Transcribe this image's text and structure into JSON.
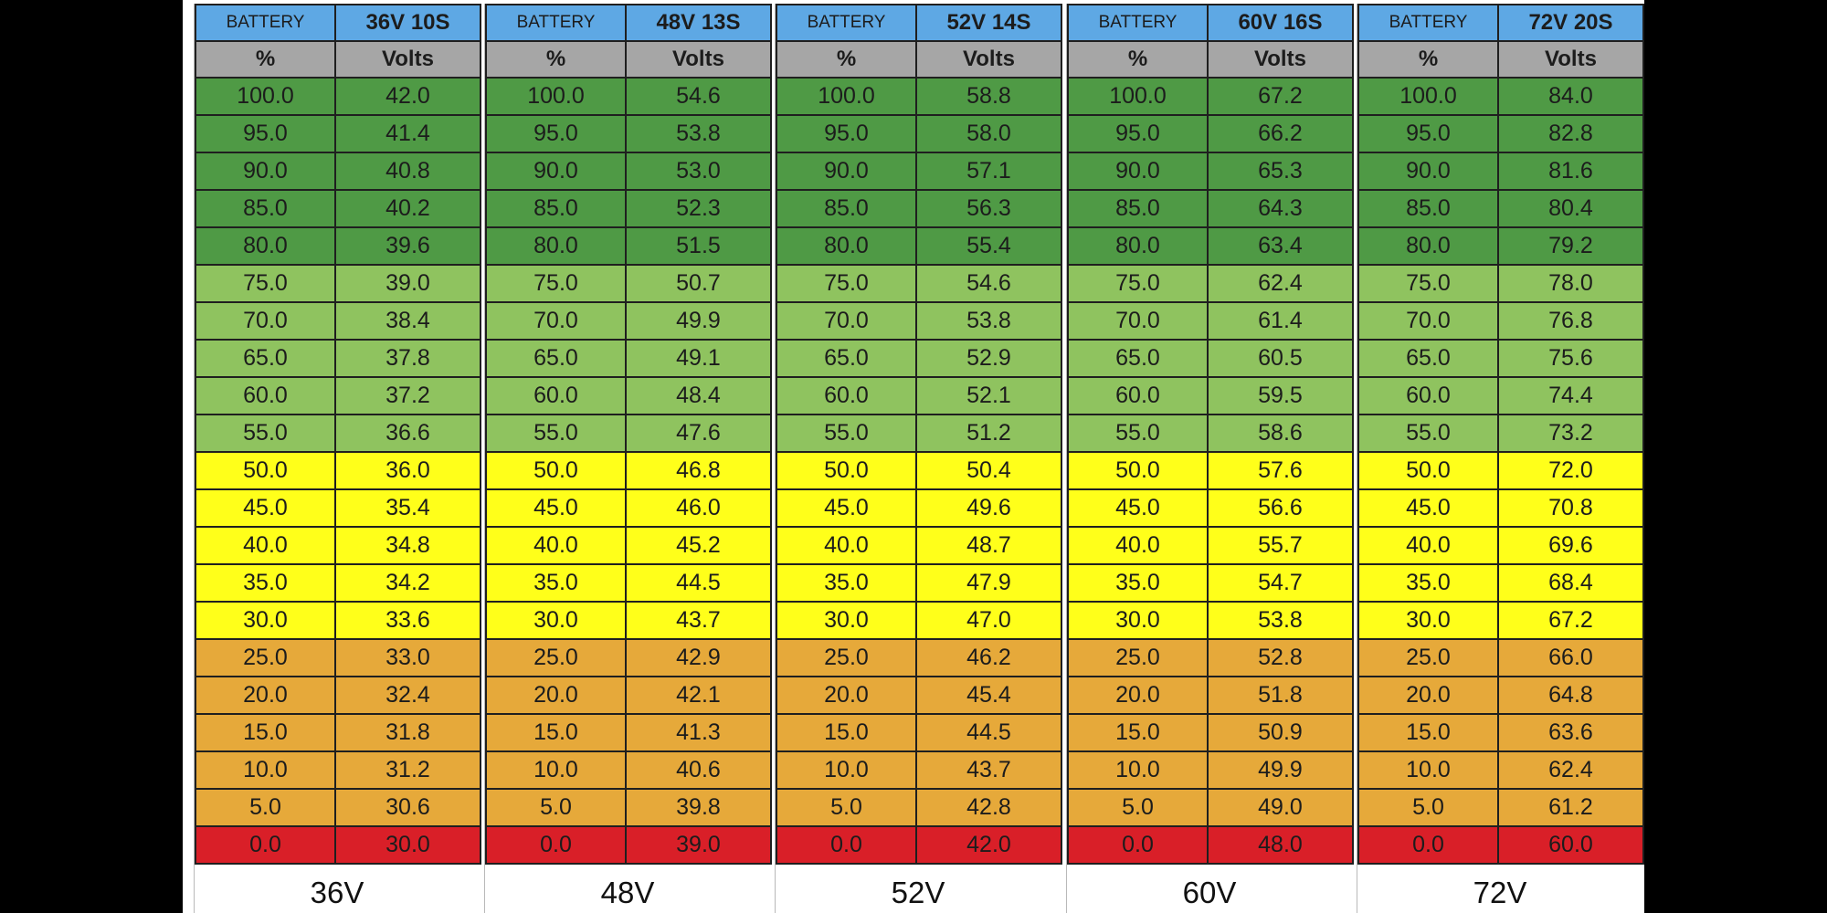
{
  "colors": {
    "header_blue": "#5ea8e4",
    "subheader_gray": "#a6a6a6",
    "dark_green": "#4f9a45",
    "light_green": "#8fc35f",
    "yellow": "#ffff1a",
    "orange": "#e6a93a",
    "red": "#d91f28"
  },
  "headers": {
    "battery": "BATTERY",
    "percent": "%",
    "volts": "Volts"
  },
  "chart_data": {
    "type": "table",
    "percent": [
      "100.0",
      "95.0",
      "90.0",
      "85.0",
      "80.0",
      "75.0",
      "70.0",
      "65.0",
      "60.0",
      "55.0",
      "50.0",
      "45.0",
      "40.0",
      "35.0",
      "30.0",
      "25.0",
      "20.0",
      "15.0",
      "10.0",
      "5.0",
      "0.0"
    ],
    "row_band": [
      "dark_green",
      "dark_green",
      "dark_green",
      "dark_green",
      "dark_green",
      "light_green",
      "light_green",
      "light_green",
      "light_green",
      "light_green",
      "yellow",
      "yellow",
      "yellow",
      "yellow",
      "yellow",
      "orange",
      "orange",
      "orange",
      "orange",
      "orange",
      "red"
    ],
    "packs": [
      {
        "name": "36V 10S",
        "label": "36V",
        "volts": [
          "42.0",
          "41.4",
          "40.8",
          "40.2",
          "39.6",
          "39.0",
          "38.4",
          "37.8",
          "37.2",
          "36.6",
          "36.0",
          "35.4",
          "34.8",
          "34.2",
          "33.6",
          "33.0",
          "32.4",
          "31.8",
          "31.2",
          "30.6",
          "30.0"
        ]
      },
      {
        "name": "48V 13S",
        "label": "48V",
        "volts": [
          "54.6",
          "53.8",
          "53.0",
          "52.3",
          "51.5",
          "50.7",
          "49.9",
          "49.1",
          "48.4",
          "47.6",
          "46.8",
          "46.0",
          "45.2",
          "44.5",
          "43.7",
          "42.9",
          "42.1",
          "41.3",
          "40.6",
          "39.8",
          "39.0"
        ]
      },
      {
        "name": "52V 14S",
        "label": "52V",
        "volts": [
          "58.8",
          "58.0",
          "57.1",
          "56.3",
          "55.4",
          "54.6",
          "53.8",
          "52.9",
          "52.1",
          "51.2",
          "50.4",
          "49.6",
          "48.7",
          "47.9",
          "47.0",
          "46.2",
          "45.4",
          "44.5",
          "43.7",
          "42.8",
          "42.0"
        ]
      },
      {
        "name": "60V 16S",
        "label": "60V",
        "volts": [
          "67.2",
          "66.2",
          "65.3",
          "64.3",
          "63.4",
          "62.4",
          "61.4",
          "60.5",
          "59.5",
          "58.6",
          "57.6",
          "56.6",
          "55.7",
          "54.7",
          "53.8",
          "52.8",
          "51.8",
          "50.9",
          "49.9",
          "49.0",
          "48.0"
        ]
      },
      {
        "name": "72V 20S",
        "label": "72V",
        "volts": [
          "84.0",
          "82.8",
          "81.6",
          "80.4",
          "79.2",
          "78.0",
          "76.8",
          "75.6",
          "74.4",
          "73.2",
          "72.0",
          "70.8",
          "69.6",
          "68.4",
          "67.2",
          "66.0",
          "64.8",
          "63.6",
          "62.4",
          "61.2",
          "60.0"
        ]
      }
    ]
  }
}
